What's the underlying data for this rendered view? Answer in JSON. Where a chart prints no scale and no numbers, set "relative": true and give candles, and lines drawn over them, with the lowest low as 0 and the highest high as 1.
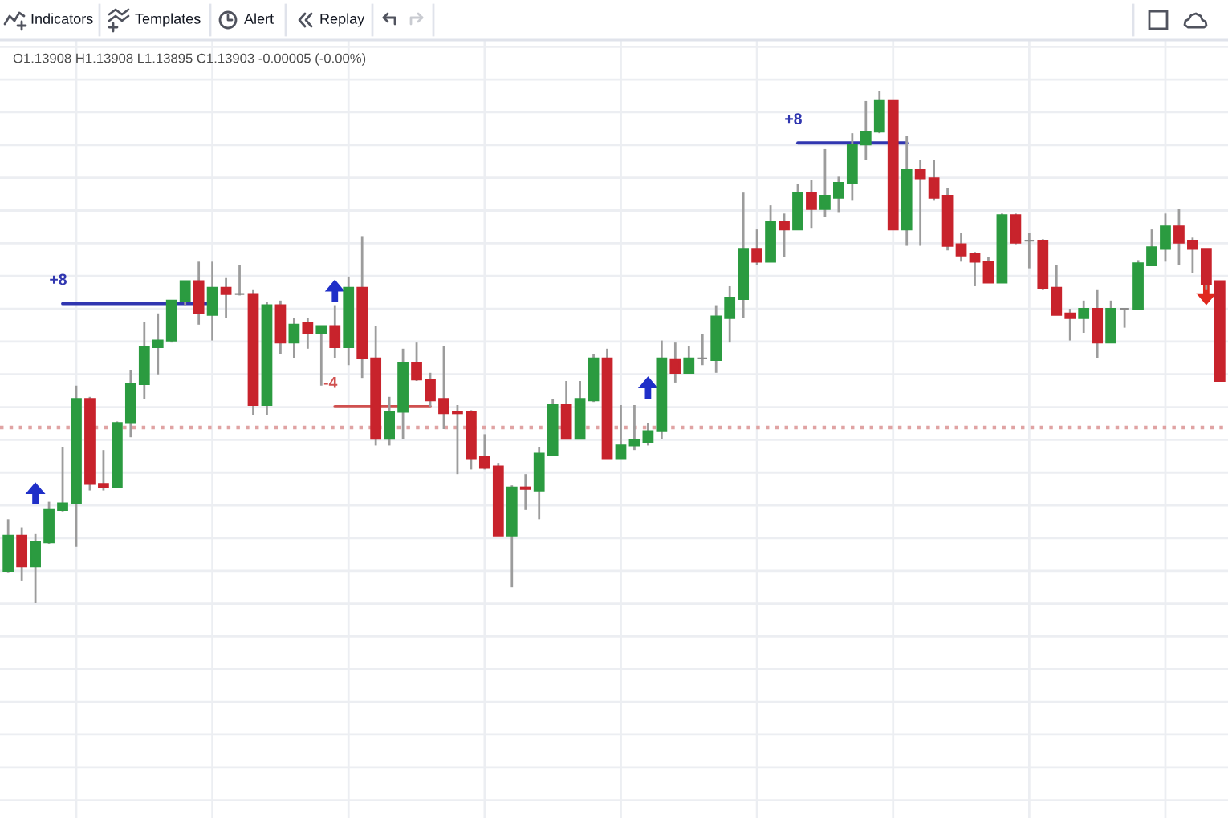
{
  "chart_data": {
    "type": "candlestick",
    "relative": true,
    "grid": true,
    "categories": [
      null,
      null,
      null,
      null,
      null,
      null,
      null,
      null,
      null,
      null,
      null,
      null,
      null,
      null,
      null,
      null,
      null,
      null,
      null,
      null,
      null,
      null,
      null,
      null,
      null,
      null,
      null,
      null,
      null,
      null,
      null,
      null,
      null,
      null,
      null,
      null,
      null,
      null,
      null,
      null,
      null,
      null,
      null,
      null,
      null,
      null,
      null,
      null,
      null,
      null,
      null,
      null,
      null,
      null,
      null,
      null,
      null,
      null,
      null,
      null,
      null,
      null,
      null,
      null,
      null,
      null,
      null,
      null,
      null,
      null,
      null,
      null,
      null,
      null,
      null,
      null,
      null,
      null,
      null,
      null,
      null,
      null,
      null,
      null,
      null,
      null,
      null,
      null,
      null,
      null
    ],
    "ohlc": [
      [
        0.063,
        0.164,
        0.06,
        0.132
      ],
      [
        0.132,
        0.148,
        0.044,
        0.072
      ],
      [
        0.072,
        0.135,
        0,
        0.119
      ],
      [
        0.119,
        0.198,
        0.116,
        0.182
      ],
      [
        0.182,
        0.305,
        0.179,
        0.195
      ],
      [
        0.195,
        0.425,
        0.11,
        0.399
      ],
      [
        0.399,
        0.403,
        0.22,
        0.233
      ],
      [
        0.233,
        0.299,
        0.22,
        0.226
      ],
      [
        0.226,
        0.355,
        0.226,
        0.352
      ],
      [
        0.352,
        0.456,
        0.324,
        0.428
      ],
      [
        0.428,
        0.55,
        0.399,
        0.5
      ],
      [
        0.5,
        0.566,
        0.447,
        0.513
      ],
      [
        0.513,
        0.591,
        0.509,
        0.591
      ],
      [
        0.591,
        0.629,
        0.582,
        0.629
      ],
      [
        0.629,
        0.667,
        0.544,
        0.566
      ],
      [
        0.563,
        0.667,
        0.513,
        0.616
      ],
      [
        0.616,
        0.635,
        0.557,
        0.604
      ],
      [
        0.604,
        0.66,
        0.601,
        0.604
      ],
      [
        0.604,
        0.613,
        0.368,
        0.387
      ],
      [
        0.387,
        0.588,
        0.368,
        0.582
      ],
      [
        0.582,
        0.591,
        0.487,
        0.509
      ],
      [
        0.509,
        0.557,
        0.478,
        0.544
      ],
      [
        0.547,
        0.557,
        0.497,
        0.528
      ],
      [
        0.528,
        0.541,
        0.425,
        0.541
      ],
      [
        0.541,
        0.582,
        0.478,
        0.5
      ],
      [
        0.5,
        0.638,
        0.465,
        0.616
      ],
      [
        0.616,
        0.717,
        0.44,
        0.478
      ],
      [
        0.478,
        0.541,
        0.308,
        0.321
      ],
      [
        0.321,
        0.403,
        0.308,
        0.374
      ],
      [
        0.374,
        0.497,
        0.321,
        0.469
      ],
      [
        0.469,
        0.509,
        0.434,
        0.437
      ],
      [
        0.437,
        0.45,
        0.384,
        0.396
      ],
      [
        0.399,
        0.503,
        0.34,
        0.371
      ],
      [
        0.374,
        0.387,
        0.252,
        0.371
      ],
      [
        0.374,
        0.377,
        0.261,
        0.283
      ],
      [
        0.286,
        0.33,
        0.261,
        0.264
      ],
      [
        0.267,
        0.274,
        0.132,
        0.132
      ],
      [
        0.132,
        0.23,
        0.031,
        0.226
      ],
      [
        0.226,
        0.252,
        0.182,
        0.223
      ],
      [
        0.22,
        0.305,
        0.164,
        0.292
      ],
      [
        0.289,
        0.399,
        0.289,
        0.387
      ],
      [
        0.387,
        0.434,
        0.321,
        0.321
      ],
      [
        0.321,
        0.434,
        0.321,
        0.399
      ],
      [
        0.396,
        0.487,
        0.393,
        0.478
      ],
      [
        0.478,
        0.497,
        0.283,
        0.283
      ],
      [
        0.283,
        0.387,
        0.283,
        0.308
      ],
      [
        0.308,
        0.387,
        0.299,
        0.318
      ],
      [
        0.314,
        0.352,
        0.308,
        0.336
      ],
      [
        0.336,
        0.513,
        0.321,
        0.478
      ],
      [
        0.475,
        0.509,
        0.431,
        0.45
      ],
      [
        0.45,
        0.503,
        0.45,
        0.478
      ],
      [
        0.478,
        0.525,
        0.465,
        0.478
      ],
      [
        0.475,
        0.582,
        0.45,
        0.56
      ],
      [
        0.557,
        0.619,
        0.509,
        0.597
      ],
      [
        0.594,
        0.802,
        0.557,
        0.692
      ],
      [
        0.692,
        0.73,
        0.66,
        0.667
      ],
      [
        0.667,
        0.777,
        0.667,
        0.745
      ],
      [
        0.745,
        0.761,
        0.676,
        0.73
      ],
      [
        0.73,
        0.818,
        0.73,
        0.802
      ],
      [
        0.802,
        0.827,
        0.733,
        0.77
      ],
      [
        0.77,
        0.887,
        0.755,
        0.796
      ],
      [
        0.792,
        0.833,
        0.764,
        0.821
      ],
      [
        0.821,
        0.918,
        0.786,
        0.896
      ],
      [
        0.896,
        0.981,
        0.865,
        0.921
      ],
      [
        0.921,
        1,
        0.918,
        0.981
      ],
      [
        0.981,
        0.981,
        0.73,
        0.73
      ],
      [
        0.73,
        0.912,
        0.698,
        0.846
      ],
      [
        0.846,
        0.865,
        0.698,
        0.83
      ],
      [
        0.83,
        0.865,
        0.786,
        0.792
      ],
      [
        0.796,
        0.811,
        0.689,
        0.698
      ],
      [
        0.701,
        0.723,
        0.667,
        0.679
      ],
      [
        0.682,
        0.686,
        0.619,
        0.667
      ],
      [
        0.667,
        0.676,
        0.626,
        0.626
      ],
      [
        0.626,
        0.761,
        0.626,
        0.758
      ],
      [
        0.758,
        0.761,
        0.701,
        0.704
      ],
      [
        0.708,
        0.723,
        0.654,
        0.708
      ],
      [
        0.708,
        0.711,
        0.613,
        0.616
      ],
      [
        0.616,
        0.66,
        0.563,
        0.563
      ],
      [
        0.566,
        0.575,
        0.513,
        0.557
      ],
      [
        0.557,
        0.591,
        0.528,
        0.575
      ],
      [
        0.575,
        0.613,
        0.478,
        0.509
      ],
      [
        0.509,
        0.591,
        0.509,
        0.575
      ],
      [
        0.575,
        0.575,
        0.538,
        0.575
      ],
      [
        0.575,
        0.67,
        0.575,
        0.664
      ],
      [
        0.66,
        0.73,
        0.66,
        0.695
      ],
      [
        0.692,
        0.761,
        0.667,
        0.736
      ],
      [
        0.736,
        0.77,
        0.66,
        0.704
      ],
      [
        0.708,
        0.714,
        0.645,
        0.692
      ],
      [
        0.692,
        0.692,
        0.613,
        0.623
      ],
      [
        0.629,
        0.629,
        0.434,
        0.434
      ]
    ],
    "colors": [
      "#2b9b40",
      "#c8232c",
      "#2b9b40",
      "#2b9b40",
      "#2b9b40",
      "#2b9b40",
      "#c8232c",
      "#c8232c",
      "#2b9b40",
      "#2b9b40",
      "#2b9b40",
      "#2b9b40",
      "#2b9b40",
      "#2b9b40",
      "#c8232c",
      "#2b9b40",
      "#c8232c",
      "#8c8c8c",
      "#c8232c",
      "#2b9b40",
      "#c8232c",
      "#2b9b40",
      "#c8232c",
      "#2b9b40",
      "#c8232c",
      "#2b9b40",
      "#c8232c",
      "#c8232c",
      "#2b9b40",
      "#2b9b40",
      "#c8232c",
      "#c8232c",
      "#c8232c",
      "#c8232c",
      "#c8232c",
      "#c8232c",
      "#c8232c",
      "#2b9b40",
      "#c8232c",
      "#2b9b40",
      "#2b9b40",
      "#c8232c",
      "#2b9b40",
      "#2b9b40",
      "#c8232c",
      "#2b9b40",
      "#2b9b40",
      "#2b9b40",
      "#2b9b40",
      "#c8232c",
      "#2b9b40",
      "#8c8c8c",
      "#2b9b40",
      "#2b9b40",
      "#2b9b40",
      "#c8232c",
      "#2b9b40",
      "#c8232c",
      "#2b9b40",
      "#c8232c",
      "#2b9b40",
      "#2b9b40",
      "#2b9b40",
      "#2b9b40",
      "#2b9b40",
      "#c8232c",
      "#2b9b40",
      "#c8232c",
      "#c8232c",
      "#c8232c",
      "#c8232c",
      "#c8232c",
      "#c8232c",
      "#2b9b40",
      "#c8232c",
      "#8c8c8c",
      "#c8232c",
      "#c8232c",
      "#c8232c",
      "#2b9b40",
      "#c8232c",
      "#2b9b40",
      "#8c8c8c",
      "#2b9b40",
      "#2b9b40",
      "#2b9b40",
      "#c8232c",
      "#c8232c",
      "#c8232c",
      "#c8232c"
    ],
    "series": [
      {
        "type": "line",
        "name": "+8",
        "color": "#3036b0",
        "values": [
          null,
          null,
          null,
          null,
          0.585,
          0.585,
          0.585,
          0.585,
          0.585,
          0.585,
          0.585,
          0.585,
          0.585,
          0.585,
          0.585,
          0.585,
          null,
          null,
          null,
          null,
          null,
          null,
          null,
          null,
          null,
          null,
          null,
          null,
          null,
          null,
          null,
          null,
          null,
          null,
          null,
          null,
          null,
          null,
          null,
          null,
          null,
          null,
          null,
          null,
          null,
          null,
          null,
          null,
          null,
          null,
          null,
          null,
          null,
          null,
          null,
          null,
          null,
          null,
          null,
          null,
          null,
          null,
          null,
          null,
          null,
          null,
          null,
          null,
          null,
          null,
          null,
          null,
          null,
          null,
          null,
          null,
          null,
          null,
          null,
          null,
          null,
          null,
          null,
          null,
          null,
          null,
          null,
          null,
          null,
          null
        ]
      },
      {
        "type": "line",
        "name": "-4",
        "color": "#d0504f",
        "values": [
          null,
          null,
          null,
          null,
          null,
          null,
          null,
          null,
          null,
          null,
          null,
          null,
          null,
          null,
          null,
          null,
          null,
          null,
          null,
          null,
          null,
          null,
          null,
          null,
          0.384,
          0.384,
          0.384,
          0.384,
          0.384,
          0.384,
          0.384,
          0.384,
          null,
          null,
          null,
          null,
          null,
          null,
          null,
          null,
          null,
          null,
          null,
          null,
          null,
          null,
          null,
          null,
          null,
          null,
          null,
          null,
          null,
          null,
          null,
          null,
          null,
          null,
          null,
          null,
          null,
          null,
          null,
          null,
          null,
          null,
          null,
          null,
          null,
          null,
          null,
          null,
          null,
          null,
          null,
          null,
          null,
          null,
          null,
          null,
          null,
          null,
          null,
          null,
          null,
          null,
          null,
          null,
          null,
          null
        ]
      },
      {
        "type": "line",
        "name": "+8",
        "color": "#3036b0",
        "values": [
          null,
          null,
          null,
          null,
          null,
          null,
          null,
          null,
          null,
          null,
          null,
          null,
          null,
          null,
          null,
          null,
          null,
          null,
          null,
          null,
          null,
          null,
          null,
          null,
          null,
          null,
          null,
          null,
          null,
          null,
          null,
          null,
          null,
          null,
          null,
          null,
          null,
          null,
          null,
          null,
          null,
          null,
          null,
          null,
          null,
          null,
          null,
          null,
          null,
          null,
          null,
          null,
          null,
          null,
          null,
          null,
          null,
          null,
          0.899,
          0.899,
          0.899,
          0.899,
          0.899,
          0.899,
          0.899,
          0.899,
          0.899,
          null,
          null,
          null,
          null,
          null,
          null,
          null,
          null,
          null,
          null,
          null,
          null,
          null,
          null,
          null,
          null,
          null,
          null,
          null,
          null,
          null,
          null,
          null
        ]
      }
    ],
    "ref_lines": [
      {
        "axis": "y",
        "value": 0.343,
        "color": "#e0a3a3",
        "line_style": "dotted"
      }
    ],
    "annotations": [
      "Indicators",
      "Templates",
      "Alert",
      "Replay",
      "O1.13908 H1.13908 L1.13895 C1.13903 -0.00005 (-0.00%)"
    ]
  }
}
